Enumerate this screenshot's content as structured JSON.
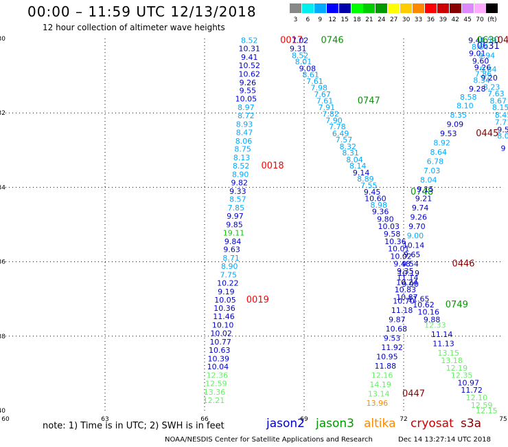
{
  "header": {
    "title": "00:00 – 11:59 UTC 12/13/2018",
    "subtitle": "12 hour collection of altimeter wave heights"
  },
  "color_scale": {
    "labels": [
      "3",
      "6",
      "9",
      "12",
      "15",
      "18",
      "21",
      "24",
      "27",
      "30",
      "33",
      "36",
      "39",
      "42",
      "45",
      "70",
      "(ft)"
    ],
    "colors": [
      "#888888",
      "#00eeee",
      "#00aaff",
      "#0000ff",
      "#0000aa",
      "#00ff00",
      "#00cc00",
      "#009900",
      "#ffff00",
      "#ffcc00",
      "#ff8800",
      "#ff0000",
      "#cc0000",
      "#880000",
      "#dd88ff",
      "#ffaaff",
      "#000000"
    ]
  },
  "footer": {
    "note": "note: 1) Time is in UTC; 2) SWH is in feet",
    "legend": [
      {
        "label": "jason2",
        "color": "#0000cc"
      },
      {
        "label": "jason3",
        "color": "#009900"
      },
      {
        "label": "altika",
        "color": "#ff8800"
      },
      {
        "label": "cryosat",
        "color": "#cc0000"
      },
      {
        "label": "s3a",
        "color": "#880000"
      }
    ],
    "credit": "NOAA/NESDIS Center for Satellite Applications and Research",
    "timestamp": "Dec 14 13:27:14 UTC 2018"
  },
  "chart_data": {
    "type": "scatter",
    "title": "00:00 – 11:59 UTC 12/13/2018",
    "xlim": [
      60,
      75
    ],
    "ylim": [
      -40,
      -30
    ],
    "x_ticks": [
      "60",
      "63",
      "66",
      "69",
      "72",
      "75"
    ],
    "y_ticks": [
      "-30",
      "-32",
      "-34",
      "-36",
      "-38",
      "-40"
    ],
    "grid": true,
    "unit": "ft",
    "points": [
      {
        "x": 69.85,
        "y": -30.05,
        "v": "0746",
        "c": "#009900",
        "time": true
      },
      {
        "x": 68.62,
        "y": -30.05,
        "v": "0017",
        "c": "#ff0000",
        "time": true
      },
      {
        "x": 68.88,
        "y": -30.05,
        "v": "7.02",
        "c": "#0000cc"
      },
      {
        "x": 67.35,
        "y": -30.05,
        "v": "8.52",
        "c": "#00aaff"
      },
      {
        "x": 67.35,
        "y": -30.27,
        "v": "10.31",
        "c": "#0000cc"
      },
      {
        "x": 67.35,
        "y": -30.5,
        "v": "9.41",
        "c": "#0000cc"
      },
      {
        "x": 67.35,
        "y": -30.72,
        "v": "10.52",
        "c": "#0000cc"
      },
      {
        "x": 67.35,
        "y": -30.95,
        "v": "10.62",
        "c": "#0000cc"
      },
      {
        "x": 67.3,
        "y": -31.18,
        "v": "9.26",
        "c": "#0000cc"
      },
      {
        "x": 67.3,
        "y": -31.4,
        "v": "9.55",
        "c": "#0000cc"
      },
      {
        "x": 67.25,
        "y": -31.62,
        "v": "10.05",
        "c": "#0000cc"
      },
      {
        "x": 67.25,
        "y": -31.85,
        "v": "8.97",
        "c": "#00aaff"
      },
      {
        "x": 67.25,
        "y": -32.07,
        "v": "8.72",
        "c": "#00aaff"
      },
      {
        "x": 67.2,
        "y": -32.3,
        "v": "8.93",
        "c": "#00aaff"
      },
      {
        "x": 67.2,
        "y": -32.52,
        "v": "8.47",
        "c": "#00aaff"
      },
      {
        "x": 67.18,
        "y": -32.75,
        "v": "8.06",
        "c": "#00aaff"
      },
      {
        "x": 67.15,
        "y": -32.97,
        "v": "8.75",
        "c": "#00aaff"
      },
      {
        "x": 67.12,
        "y": -33.2,
        "v": "8.13",
        "c": "#00aaff"
      },
      {
        "x": 67.1,
        "y": -33.42,
        "v": "8.52",
        "c": "#00aaff"
      },
      {
        "x": 68.05,
        "y": -33.42,
        "v": "0018",
        "c": "#ff0000",
        "time": true
      },
      {
        "x": 67.08,
        "y": -33.65,
        "v": "8.90",
        "c": "#00aaff"
      },
      {
        "x": 67.05,
        "y": -33.87,
        "v": "9.82",
        "c": "#0000cc"
      },
      {
        "x": 67.0,
        "y": -34.1,
        "v": "9.33",
        "c": "#0000cc"
      },
      {
        "x": 67.0,
        "y": -34.32,
        "v": "8.57",
        "c": "#00aaff"
      },
      {
        "x": 66.95,
        "y": -34.55,
        "v": "7.85",
        "c": "#00aaff"
      },
      {
        "x": 66.92,
        "y": -34.77,
        "v": "9.97",
        "c": "#0000cc"
      },
      {
        "x": 66.9,
        "y": -35.0,
        "v": "9.85",
        "c": "#0000cc"
      },
      {
        "x": 66.88,
        "y": -35.22,
        "v": "19.11",
        "c": "#00cc00"
      },
      {
        "x": 66.85,
        "y": -35.45,
        "v": "9.84",
        "c": "#0000cc"
      },
      {
        "x": 66.82,
        "y": -35.67,
        "v": "9.63",
        "c": "#0000cc"
      },
      {
        "x": 66.8,
        "y": -35.9,
        "v": "8.71",
        "c": "#00aaff"
      },
      {
        "x": 66.75,
        "y": -36.12,
        "v": "8.90",
        "c": "#00aaff"
      },
      {
        "x": 66.72,
        "y": -36.35,
        "v": "7.75",
        "c": "#00aaff"
      },
      {
        "x": 66.7,
        "y": -36.57,
        "v": "10.22",
        "c": "#0000cc"
      },
      {
        "x": 66.65,
        "y": -36.8,
        "v": "9.19",
        "c": "#0000cc"
      },
      {
        "x": 66.62,
        "y": -37.02,
        "v": "10.05",
        "c": "#0000cc"
      },
      {
        "x": 67.6,
        "y": -37.02,
        "v": "0019",
        "c": "#ff0000",
        "time": true
      },
      {
        "x": 66.6,
        "y": -37.25,
        "v": "10.36",
        "c": "#0000cc"
      },
      {
        "x": 66.58,
        "y": -37.47,
        "v": "11.46",
        "c": "#0000cc"
      },
      {
        "x": 66.55,
        "y": -37.7,
        "v": "10.10",
        "c": "#0000cc"
      },
      {
        "x": 66.5,
        "y": -37.92,
        "v": "10.02",
        "c": "#0000cc"
      },
      {
        "x": 66.48,
        "y": -38.15,
        "v": "10.77",
        "c": "#0000cc"
      },
      {
        "x": 66.45,
        "y": -38.37,
        "v": "10.63",
        "c": "#0000cc"
      },
      {
        "x": 66.42,
        "y": -38.6,
        "v": "10.39",
        "c": "#0000cc"
      },
      {
        "x": 66.4,
        "y": -38.82,
        "v": "10.04",
        "c": "#0000cc"
      },
      {
        "x": 66.38,
        "y": -39.05,
        "v": "12.36",
        "c": "#66ee66"
      },
      {
        "x": 66.35,
        "y": -39.27,
        "v": "12.59",
        "c": "#66ee66"
      },
      {
        "x": 66.3,
        "y": -39.5,
        "v": "13.36",
        "c": "#66ee66"
      },
      {
        "x": 66.28,
        "y": -39.72,
        "v": "12.21",
        "c": "#66ee66"
      },
      {
        "x": 68.82,
        "y": -30.27,
        "v": "9.31",
        "c": "#0000cc"
      },
      {
        "x": 68.88,
        "y": -30.45,
        "v": "8.52",
        "c": "#00aaff"
      },
      {
        "x": 68.98,
        "y": -30.62,
        "v": "8.01",
        "c": "#00aaff"
      },
      {
        "x": 69.1,
        "y": -30.8,
        "v": "9.08",
        "c": "#0000cc"
      },
      {
        "x": 69.2,
        "y": -30.97,
        "v": "8.61",
        "c": "#00aaff"
      },
      {
        "x": 69.32,
        "y": -31.15,
        "v": "7.61",
        "c": "#00aaff"
      },
      {
        "x": 69.45,
        "y": -31.32,
        "v": "7.98",
        "c": "#00aaff"
      },
      {
        "x": 69.55,
        "y": -31.5,
        "v": "7.67",
        "c": "#00aaff"
      },
      {
        "x": 69.62,
        "y": -31.67,
        "v": "7.61",
        "c": "#00aaff"
      },
      {
        "x": 70.95,
        "y": -31.67,
        "v": "0747",
        "c": "#009900",
        "time": true
      },
      {
        "x": 69.68,
        "y": -31.85,
        "v": "7.91",
        "c": "#00aaff"
      },
      {
        "x": 69.8,
        "y": -32.02,
        "v": "7.82",
        "c": "#00aaff"
      },
      {
        "x": 69.9,
        "y": -32.2,
        "v": "7.90",
        "c": "#00aaff"
      },
      {
        "x": 70.0,
        "y": -32.37,
        "v": "7.78",
        "c": "#00aaff"
      },
      {
        "x": 70.1,
        "y": -32.55,
        "v": "6.49",
        "c": "#00aaff"
      },
      {
        "x": 70.2,
        "y": -32.72,
        "v": "7.57",
        "c": "#00aaff"
      },
      {
        "x": 70.32,
        "y": -32.9,
        "v": "8.32",
        "c": "#00aaff"
      },
      {
        "x": 70.4,
        "y": -33.07,
        "v": "8.31",
        "c": "#00aaff"
      },
      {
        "x": 70.52,
        "y": -33.25,
        "v": "8.04",
        "c": "#00aaff"
      },
      {
        "x": 70.62,
        "y": -33.42,
        "v": "8.14",
        "c": "#00aaff"
      },
      {
        "x": 70.72,
        "y": -33.6,
        "v": "9.14",
        "c": "#0000cc"
      },
      {
        "x": 70.85,
        "y": -33.77,
        "v": "8.89",
        "c": "#00aaff"
      },
      {
        "x": 70.95,
        "y": -33.95,
        "v": "7.55",
        "c": "#00aaff"
      },
      {
        "x": 71.05,
        "y": -34.12,
        "v": "9.45",
        "c": "#0000cc"
      },
      {
        "x": 72.55,
        "y": -34.12,
        "v": "0748",
        "c": "#009900",
        "time": true
      },
      {
        "x": 71.15,
        "y": -34.3,
        "v": "10.60",
        "c": "#0000cc"
      },
      {
        "x": 71.25,
        "y": -34.47,
        "v": "8.98",
        "c": "#00aaff"
      },
      {
        "x": 71.3,
        "y": -34.65,
        "v": "9.36",
        "c": "#0000cc"
      },
      {
        "x": 71.45,
        "y": -34.85,
        "v": "9.80",
        "c": "#0000cc"
      },
      {
        "x": 71.55,
        "y": -35.05,
        "v": "10.03",
        "c": "#0000cc"
      },
      {
        "x": 71.65,
        "y": -35.25,
        "v": "9.58",
        "c": "#0000cc"
      },
      {
        "x": 71.75,
        "y": -35.45,
        "v": "10.36",
        "c": "#0000cc"
      },
      {
        "x": 71.85,
        "y": -35.65,
        "v": "10.01",
        "c": "#0000cc"
      },
      {
        "x": 71.92,
        "y": -35.85,
        "v": "10.02",
        "c": "#0000cc"
      },
      {
        "x": 71.95,
        "y": -36.05,
        "v": "9.48",
        "c": "#0000cc"
      },
      {
        "x": 72.05,
        "y": -36.25,
        "v": "9.35",
        "c": "#0000cc"
      },
      {
        "x": 72.12,
        "y": -36.42,
        "v": "11.14",
        "c": "#0000cc"
      },
      {
        "x": 72.2,
        "y": -36.6,
        "v": "9.90",
        "c": "#0000cc"
      },
      {
        "x": 72.0,
        "y": -37.05,
        "v": "10.70",
        "c": "#0000cc"
      },
      {
        "x": 71.95,
        "y": -37.3,
        "v": "11.18",
        "c": "#0000cc"
      },
      {
        "x": 71.8,
        "y": -37.55,
        "v": "9.87",
        "c": "#0000cc"
      },
      {
        "x": 71.78,
        "y": -37.8,
        "v": "10.68",
        "c": "#0000cc"
      },
      {
        "x": 71.65,
        "y": -38.05,
        "v": "9.53",
        "c": "#0000cc"
      },
      {
        "x": 71.65,
        "y": -38.3,
        "v": "11.92",
        "c": "#0000cc"
      },
      {
        "x": 71.5,
        "y": -38.55,
        "v": "10.95",
        "c": "#0000cc"
      },
      {
        "x": 71.45,
        "y": -38.8,
        "v": "11.88",
        "c": "#0000cc"
      },
      {
        "x": 71.35,
        "y": -39.05,
        "v": "12.16",
        "c": "#66ee66"
      },
      {
        "x": 71.3,
        "y": -39.3,
        "v": "14.19",
        "c": "#66ee66"
      },
      {
        "x": 71.25,
        "y": -39.55,
        "v": "13.14",
        "c": "#66ee66"
      },
      {
        "x": 71.2,
        "y": -39.8,
        "v": "13.96",
        "c": "#ff8800"
      },
      {
        "x": 72.3,
        "y": -39.55,
        "v": "0447",
        "c": "#880000",
        "time": true
      },
      {
        "x": 74.2,
        "y": -30.05,
        "v": "9.44",
        "c": "#0000cc"
      },
      {
        "x": 74.55,
        "y": -30.05,
        "v": "8.59",
        "c": "#00aaff"
      },
      {
        "x": 74.55,
        "y": -30.05,
        "v": "0630",
        "c": "#009900",
        "time": true
      },
      {
        "x": 74.55,
        "y": -30.2,
        "v": "0631",
        "c": "#0000cc",
        "time": true
      },
      {
        "x": 75.0,
        "y": -30.05,
        "v": "04",
        "c": "#880000",
        "time": true
      },
      {
        "x": 74.3,
        "y": -30.22,
        "v": "8.64",
        "c": "#00aaff"
      },
      {
        "x": 74.22,
        "y": -30.4,
        "v": "9.01",
        "c": "#0000cc"
      },
      {
        "x": 74.5,
        "y": -30.45,
        "v": "9.94",
        "c": "#00aaff"
      },
      {
        "x": 74.32,
        "y": -30.6,
        "v": "9.60",
        "c": "#0000cc"
      },
      {
        "x": 74.38,
        "y": -30.78,
        "v": "9.26",
        "c": "#0000cc"
      },
      {
        "x": 74.55,
        "y": -30.82,
        "v": "9.84",
        "c": "#00aaff"
      },
      {
        "x": 74.4,
        "y": -30.95,
        "v": "7.86",
        "c": "#00aaff"
      },
      {
        "x": 74.58,
        "y": -31.05,
        "v": "9.20",
        "c": "#0000cc"
      },
      {
        "x": 74.35,
        "y": -31.12,
        "v": "8.34",
        "c": "#00aaff"
      },
      {
        "x": 74.65,
        "y": -31.3,
        "v": "8.23",
        "c": "#00aaff"
      },
      {
        "x": 74.22,
        "y": -31.35,
        "v": "9.28",
        "c": "#0000cc"
      },
      {
        "x": 74.78,
        "y": -31.48,
        "v": "7.63",
        "c": "#00aaff"
      },
      {
        "x": 73.95,
        "y": -31.57,
        "v": "8.58",
        "c": "#00aaff"
      },
      {
        "x": 74.85,
        "y": -31.67,
        "v": "8.67",
        "c": "#00aaff"
      },
      {
        "x": 73.85,
        "y": -31.8,
        "v": "8.10",
        "c": "#00aaff"
      },
      {
        "x": 74.92,
        "y": -31.85,
        "v": "8.15",
        "c": "#00aaff"
      },
      {
        "x": 73.65,
        "y": -32.05,
        "v": "8.35",
        "c": "#00aaff"
      },
      {
        "x": 75.0,
        "y": -32.05,
        "v": "8.45",
        "c": "#00aaff"
      },
      {
        "x": 73.55,
        "y": -32.3,
        "v": "9.09",
        "c": "#0000cc"
      },
      {
        "x": 75.0,
        "y": -32.25,
        "v": "7.71",
        "c": "#00aaff"
      },
      {
        "x": 73.35,
        "y": -32.55,
        "v": "9.53",
        "c": "#0000cc"
      },
      {
        "x": 74.52,
        "y": -32.55,
        "v": "0445",
        "c": "#880000",
        "time": true
      },
      {
        "x": 75.0,
        "y": -32.45,
        "v": "9.5",
        "c": "#0000cc"
      },
      {
        "x": 73.15,
        "y": -32.8,
        "v": "8.92",
        "c": "#00aaff"
      },
      {
        "x": 75.0,
        "y": -32.62,
        "v": "8.0",
        "c": "#00aaff"
      },
      {
        "x": 73.05,
        "y": -33.05,
        "v": "8.64",
        "c": "#00aaff"
      },
      {
        "x": 75.0,
        "y": -32.95,
        "v": "9",
        "c": "#0000cc"
      },
      {
        "x": 72.95,
        "y": -33.3,
        "v": "6.78",
        "c": "#00aaff"
      },
      {
        "x": 72.85,
        "y": -33.55,
        "v": "7.03",
        "c": "#00aaff"
      },
      {
        "x": 72.75,
        "y": -33.8,
        "v": "8.04",
        "c": "#00aaff"
      },
      {
        "x": 72.65,
        "y": -34.05,
        "v": "9.15",
        "c": "#0000cc"
      },
      {
        "x": 72.6,
        "y": -34.3,
        "v": "9.21",
        "c": "#0000cc"
      },
      {
        "x": 72.5,
        "y": -34.55,
        "v": "9.74",
        "c": "#0000cc"
      },
      {
        "x": 72.45,
        "y": -34.8,
        "v": "9.26",
        "c": "#0000cc"
      },
      {
        "x": 72.4,
        "y": -35.05,
        "v": "9.70",
        "c": "#0000cc"
      },
      {
        "x": 72.35,
        "y": -35.3,
        "v": "9.00",
        "c": "#00aaff"
      },
      {
        "x": 72.3,
        "y": -35.55,
        "v": "10.14",
        "c": "#0000cc"
      },
      {
        "x": 72.25,
        "y": -35.8,
        "v": "9.65",
        "c": "#0000cc"
      },
      {
        "x": 72.2,
        "y": -36.05,
        "v": "9.54",
        "c": "#0000cc"
      },
      {
        "x": 73.8,
        "y": -36.05,
        "v": "0446",
        "c": "#880000",
        "time": true
      },
      {
        "x": 72.15,
        "y": -36.3,
        "v": "10.19",
        "c": "#0000cc"
      },
      {
        "x": 72.1,
        "y": -36.55,
        "v": "10.24",
        "c": "#0000cc"
      },
      {
        "x": 72.05,
        "y": -36.75,
        "v": "10.83",
        "c": "#0000cc"
      },
      {
        "x": 72.1,
        "y": -36.95,
        "v": "10.87",
        "c": "#0000cc"
      },
      {
        "x": 72.45,
        "y": -37.0,
        "v": "11.65",
        "c": "#0000cc"
      },
      {
        "x": 72.6,
        "y": -37.15,
        "v": "10.62",
        "c": "#0000cc"
      },
      {
        "x": 73.6,
        "y": -37.15,
        "v": "0749",
        "c": "#009900",
        "time": true
      },
      {
        "x": 72.75,
        "y": -37.35,
        "v": "10.16",
        "c": "#0000cc"
      },
      {
        "x": 72.85,
        "y": -37.55,
        "v": "9.88",
        "c": "#0000cc"
      },
      {
        "x": 72.95,
        "y": -37.7,
        "v": "12.33",
        "c": "#66ee66"
      },
      {
        "x": 73.15,
        "y": -37.95,
        "v": "11.14",
        "c": "#0000cc"
      },
      {
        "x": 73.2,
        "y": -38.2,
        "v": "11.13",
        "c": "#0000cc"
      },
      {
        "x": 73.35,
        "y": -38.45,
        "v": "13.15",
        "c": "#66ee66"
      },
      {
        "x": 73.45,
        "y": -38.65,
        "v": "13.18",
        "c": "#66ee66"
      },
      {
        "x": 73.6,
        "y": -38.85,
        "v": "12.19",
        "c": "#66ee66"
      },
      {
        "x": 73.75,
        "y": -39.05,
        "v": "12.35",
        "c": "#66ee66"
      },
      {
        "x": 73.95,
        "y": -39.25,
        "v": "10.97",
        "c": "#0000cc"
      },
      {
        "x": 74.05,
        "y": -39.45,
        "v": "11.72",
        "c": "#0000cc"
      },
      {
        "x": 74.2,
        "y": -39.65,
        "v": "12.10",
        "c": "#66ee66"
      },
      {
        "x": 74.35,
        "y": -39.85,
        "v": "12.59",
        "c": "#66ee66"
      },
      {
        "x": 74.5,
        "y": -40.0,
        "v": "12.15",
        "c": "#66ee66"
      }
    ]
  }
}
